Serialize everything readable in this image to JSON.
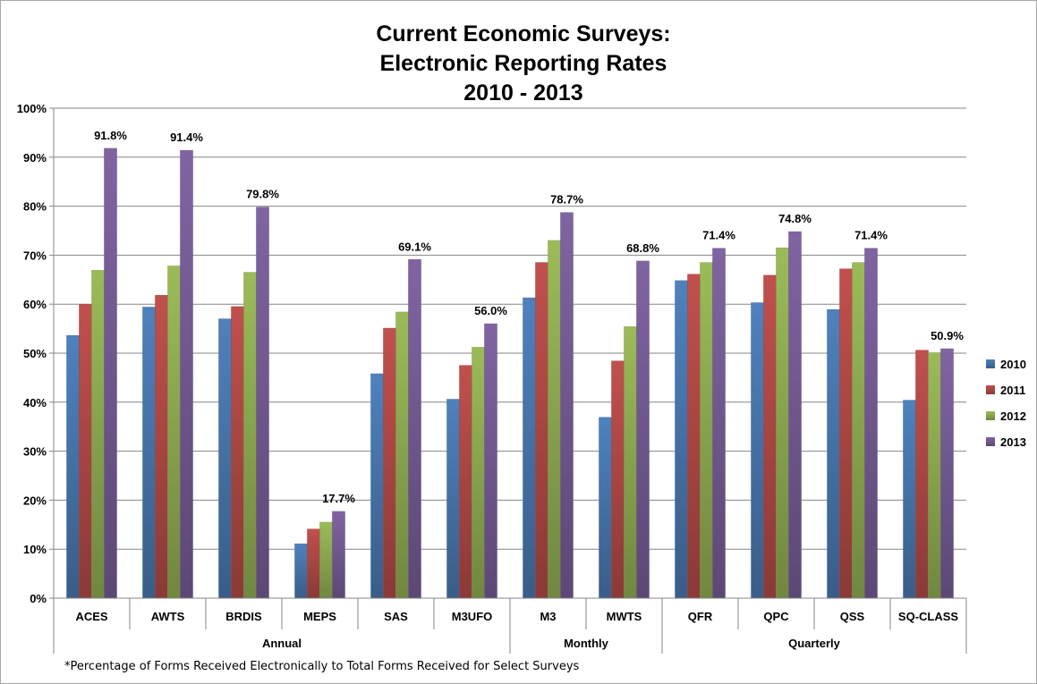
{
  "chart_data": {
    "type": "bar",
    "title_lines": [
      "Current Economic Surveys:",
      "Electronic Reporting Rates",
      "2010 - 2013"
    ],
    "categories": [
      "ACES",
      "AWTS",
      "BRDIS",
      "MEPS",
      "SAS",
      "M3UFO",
      "M3",
      "MWTS",
      "QFR",
      "QPC",
      "QSS",
      "SQ-CLASS"
    ],
    "groups": [
      {
        "label": "Annual",
        "count": 6
      },
      {
        "label": "Monthly",
        "count": 2
      },
      {
        "label": "Quarterly",
        "count": 4
      }
    ],
    "series": [
      {
        "name": "2010",
        "color": "#4f81bd",
        "values": [
          53.6,
          59.4,
          57.0,
          11.1,
          45.8,
          40.6,
          61.3,
          36.9,
          64.8,
          60.3,
          58.9,
          40.4
        ]
      },
      {
        "name": "2011",
        "color": "#c0504d",
        "values": [
          60.0,
          61.8,
          59.5,
          14.1,
          55.1,
          47.5,
          68.5,
          48.4,
          66.1,
          65.9,
          67.2,
          50.6
        ]
      },
      {
        "name": "2012",
        "color": "#9bbb59",
        "values": [
          66.9,
          67.8,
          66.5,
          15.5,
          58.4,
          51.2,
          73.0,
          55.4,
          68.5,
          71.5,
          68.5,
          50.1
        ]
      },
      {
        "name": "2013",
        "color": "#8064a2",
        "values": [
          91.8,
          91.4,
          79.8,
          17.7,
          69.1,
          56.0,
          78.7,
          68.8,
          71.4,
          74.8,
          71.4,
          50.9
        ]
      }
    ],
    "data_labels": [
      "91.8%",
      "91.4%",
      "79.8%",
      "17.7%",
      "69.1%",
      "56.0%",
      "78.7%",
      "68.8%",
      "71.4%",
      "74.8%",
      "71.4%",
      "50.9%"
    ],
    "y_ticks": [
      "0%",
      "10%",
      "20%",
      "30%",
      "40%",
      "50%",
      "60%",
      "70%",
      "80%",
      "90%",
      "100%"
    ],
    "ylim": [
      0,
      100
    ],
    "grid": true,
    "legend_position": "right",
    "footnote": "*Percentage of Forms Received Electronically to Total Forms Received for Select Surveys"
  }
}
